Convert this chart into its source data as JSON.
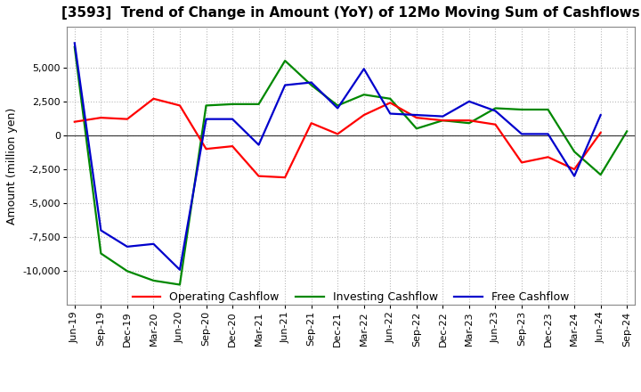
{
  "title": "[3593]  Trend of Change in Amount (YoY) of 12Mo Moving Sum of Cashflows",
  "ylabel": "Amount (million yen)",
  "labels": [
    "Jun-19",
    "Sep-19",
    "Dec-19",
    "Mar-20",
    "Jun-20",
    "Sep-20",
    "Dec-20",
    "Mar-21",
    "Jun-21",
    "Sep-21",
    "Dec-21",
    "Mar-22",
    "Jun-22",
    "Sep-22",
    "Dec-22",
    "Mar-23",
    "Jun-23",
    "Sep-23",
    "Dec-23",
    "Mar-24",
    "Jun-24",
    "Sep-24"
  ],
  "operating": [
    1000,
    1300,
    1200,
    2700,
    2200,
    -1000,
    -800,
    -3000,
    -3100,
    900,
    100,
    1500,
    2400,
    1300,
    1100,
    1100,
    800,
    -2000,
    -1600,
    -2500,
    200,
    null
  ],
  "investing": [
    6500,
    -8700,
    -10000,
    -10700,
    -11000,
    2200,
    2300,
    2300,
    5500,
    3700,
    2200,
    3000,
    2700,
    500,
    1100,
    900,
    2000,
    1900,
    1900,
    -1200,
    -2900,
    300
  ],
  "free": [
    6800,
    -7000,
    -8200,
    -8000,
    -9900,
    1200,
    1200,
    -700,
    3700,
    3900,
    2000,
    4900,
    1600,
    1500,
    1400,
    2500,
    1800,
    100,
    100,
    -3000,
    1500,
    null
  ],
  "operating_color": "#ff0000",
  "investing_color": "#008800",
  "free_color": "#0000cc",
  "background_color": "#ffffff",
  "grid_color": "#bbbbbb",
  "ylim": [
    -12500,
    8000
  ],
  "yticks": [
    -10000,
    -7500,
    -5000,
    -2500,
    0,
    2500,
    5000
  ],
  "title_fontsize": 11,
  "axis_fontsize": 9,
  "tick_fontsize": 8,
  "legend_fontsize": 9,
  "linewidth": 1.6
}
